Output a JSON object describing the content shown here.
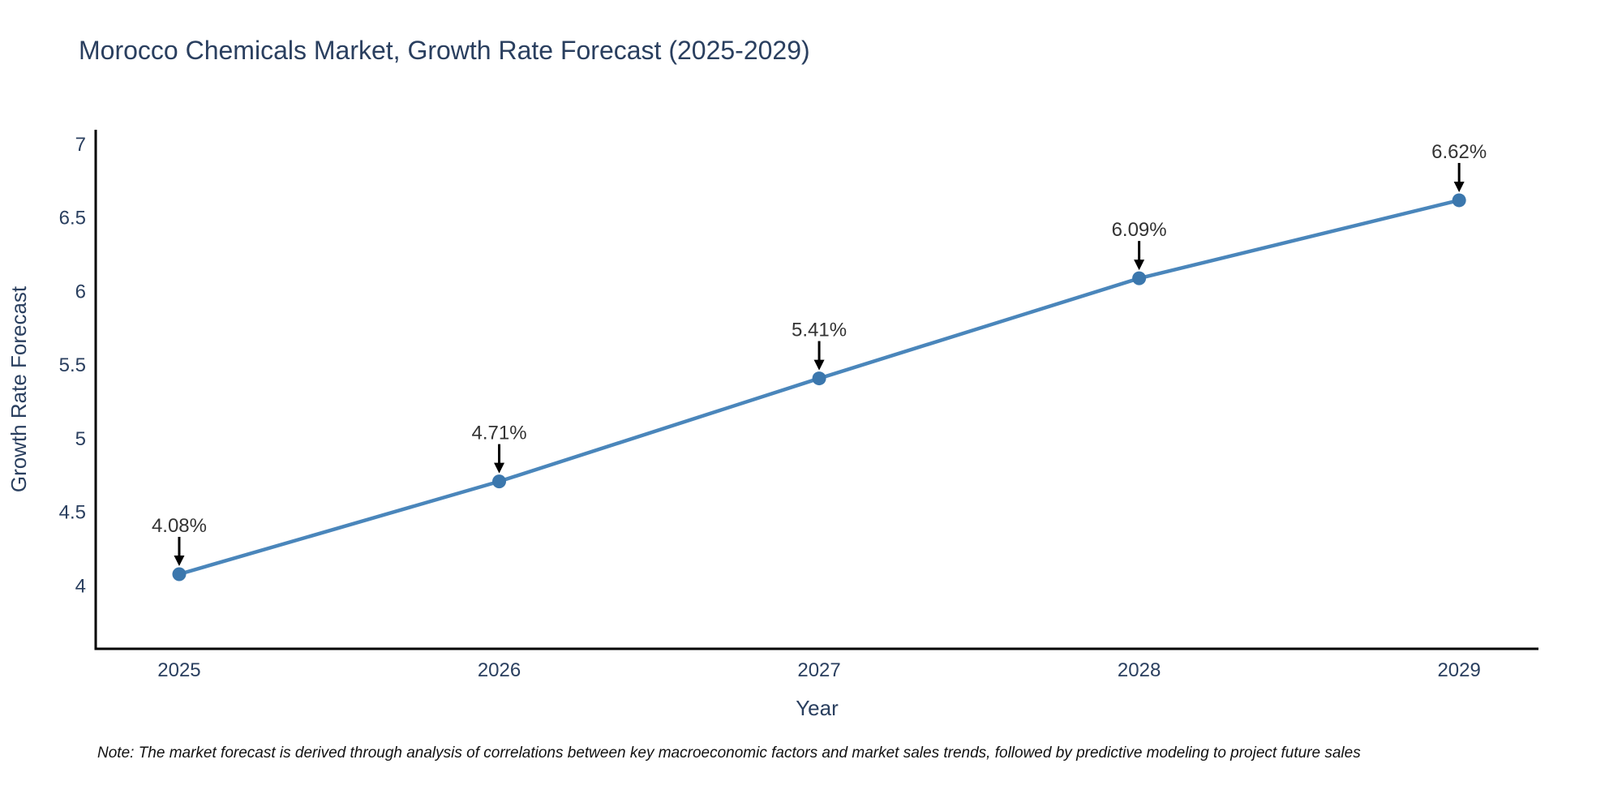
{
  "title": "Morocco Chemicals Market, Growth Rate Forecast (2025-2029)",
  "note": "Note: The market forecast is derived through analysis of correlations between key macroeconomic factors and market sales trends, followed by predictive modeling to project future sales",
  "chart_data": {
    "type": "line",
    "title": "Morocco Chemicals Market, Growth Rate Forecast (2025-2029)",
    "xlabel": "Year",
    "ylabel": "Growth Rate Forecast",
    "x": [
      2025,
      2026,
      2027,
      2028,
      2029
    ],
    "x_tick_labels": [
      "2025",
      "2026",
      "2027",
      "2028",
      "2029"
    ],
    "y_ticks": [
      4,
      4.5,
      5,
      5.5,
      6,
      6.5,
      7
    ],
    "y_tick_labels": [
      "4",
      "4.5",
      "5",
      "5.5",
      "6",
      "6.5",
      "7"
    ],
    "x_range": [
      2024.739,
      2029.248
    ],
    "y_range": [
      3.573,
      7.099
    ],
    "grid": false,
    "legend": "none",
    "series": [
      {
        "name": "Growth Rate Forecast",
        "values": [
          4.08,
          4.71,
          5.41,
          6.09,
          6.62
        ],
        "point_labels": [
          "4.08%",
          "4.71%",
          "5.41%",
          "6.09%",
          "6.62%"
        ],
        "annotation_style": "label above point with downward black arrow"
      }
    ]
  },
  "colors": {
    "background": "#ffffff",
    "line": "#4a86bb",
    "marker": "#3b77ad",
    "axis_line": "#000000",
    "title_text": "#2a3f5f",
    "tick_text": "#2a3f5f",
    "axis_title_text": "#2a3f5f",
    "annotation_text": "#333333",
    "annotation_arrow": "#000000",
    "note_text": "#111111"
  }
}
